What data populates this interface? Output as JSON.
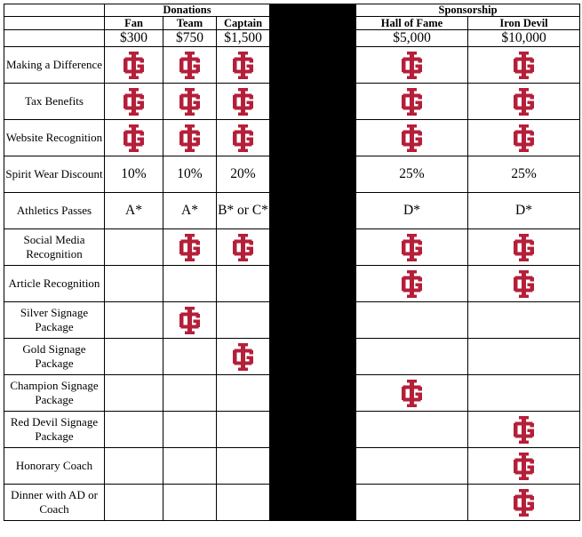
{
  "headers": {
    "donations_group": "Donations",
    "sponsorship_group": "Sponsorship",
    "tiers": [
      {
        "name": "Fan",
        "price": "$300"
      },
      {
        "name": "Team",
        "price": "$750"
      },
      {
        "name": "Captain",
        "price": "$1,500"
      },
      {
        "name": "Hall of Fame",
        "price": "$5,000"
      },
      {
        "name": "Iron Devil",
        "price": "$10,000"
      }
    ]
  },
  "icon": {
    "name": "ig-monogram-logo-icon",
    "color": "#B41F3A"
  },
  "rows": [
    {
      "label": "Making a Difference",
      "cells": [
        "icon",
        "icon",
        "icon",
        "icon",
        "icon"
      ]
    },
    {
      "label": "Tax Benefits",
      "cells": [
        "icon",
        "icon",
        "icon",
        "icon",
        "icon"
      ]
    },
    {
      "label": "Website Recognition",
      "cells": [
        "icon",
        "icon",
        "icon",
        "icon",
        "icon"
      ]
    },
    {
      "label": "Spirit Wear Discount",
      "cells": [
        "10%",
        "10%",
        "20%",
        "25%",
        "25%"
      ]
    },
    {
      "label": "Athletics Passes",
      "cells": [
        "A*",
        "A*",
        "B* or C*",
        "D*",
        "D*"
      ]
    },
    {
      "label": "Social Media Recognition",
      "cells": [
        "",
        "icon",
        "icon",
        "icon",
        "icon"
      ]
    },
    {
      "label": "Article Recognition",
      "cells": [
        "",
        "",
        "",
        "icon",
        "icon"
      ]
    },
    {
      "label": "Silver Signage Package",
      "cells": [
        "",
        "icon",
        "",
        "",
        ""
      ]
    },
    {
      "label": "Gold Signage Package",
      "cells": [
        "",
        "",
        "icon",
        "",
        ""
      ]
    },
    {
      "label": "Champion Signage Package",
      "cells": [
        "",
        "",
        "",
        "icon",
        ""
      ]
    },
    {
      "label": "Red Devil Signage Package",
      "cells": [
        "",
        "",
        "",
        "",
        "icon"
      ]
    },
    {
      "label": "Honorary Coach",
      "cells": [
        "",
        "",
        "",
        "",
        "icon"
      ]
    },
    {
      "label": "Dinner with AD or Coach",
      "cells": [
        "",
        "",
        "",
        "",
        "icon"
      ]
    }
  ]
}
